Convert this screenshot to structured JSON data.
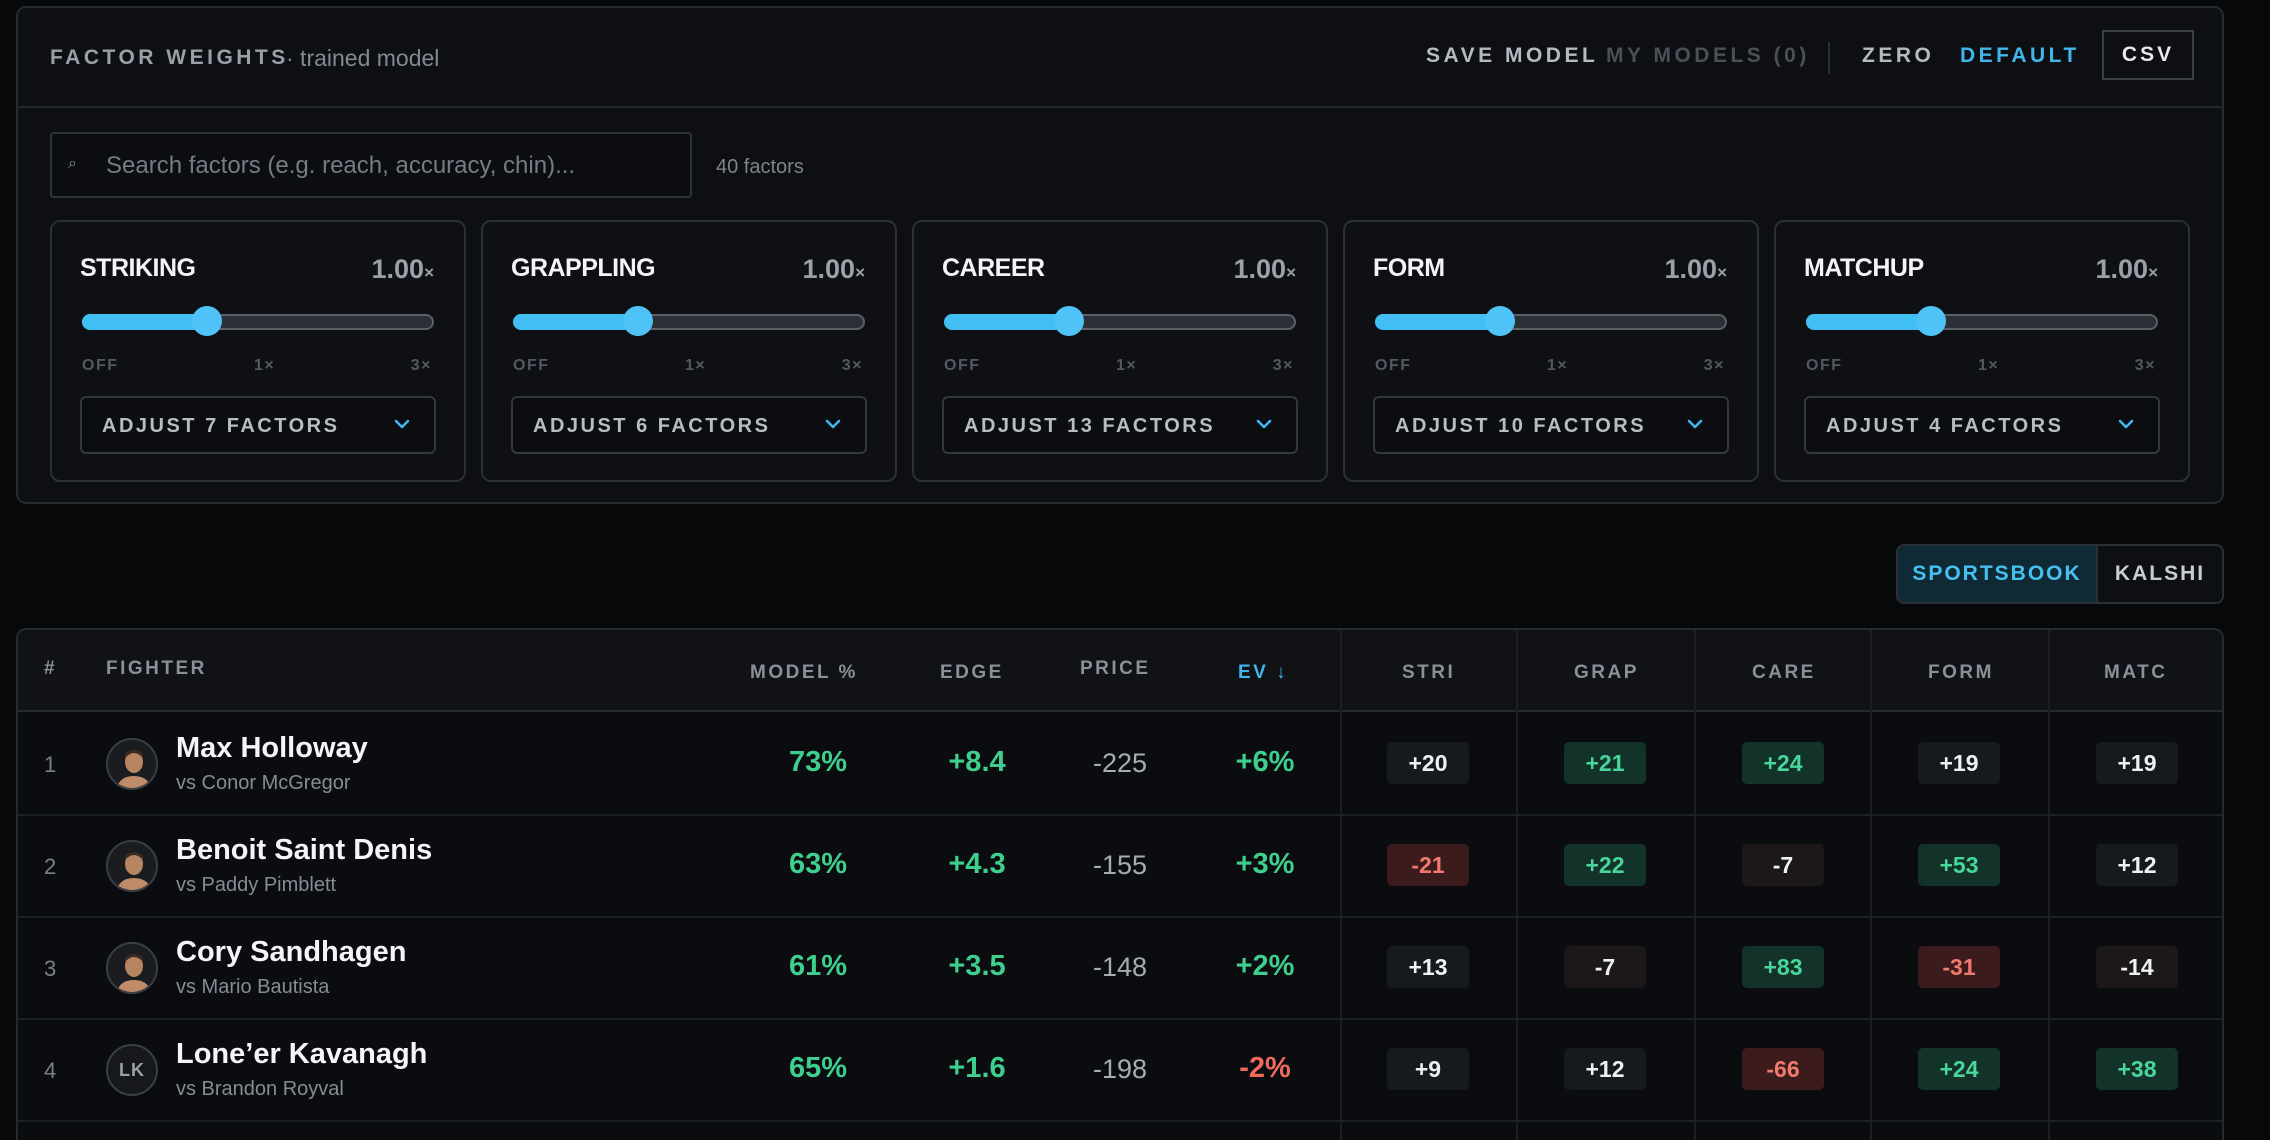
{
  "header": {
    "title": "FACTOR WEIGHTS",
    "subtitle": "· trained model",
    "save_label": "SAVE MODEL",
    "my_models_label": "MY MODELS (0)",
    "zero_label": "ZERO",
    "default_label": "DEFAULT",
    "csv_label": "CSV"
  },
  "search": {
    "placeholder": "Search factors (e.g. reach, accuracy, chin)...",
    "value": "",
    "count_label": "40 factors"
  },
  "slider_ticks": {
    "off": "OFF",
    "mid": "1×",
    "max": "3×"
  },
  "categories": [
    {
      "name": "STRIKING",
      "weight": "1.00",
      "unit": "×",
      "level": 0.35,
      "adjust_label": "ADJUST 7 FACTORS"
    },
    {
      "name": "GRAPPLING",
      "weight": "1.00",
      "unit": "×",
      "level": 0.35,
      "adjust_label": "ADJUST 6 FACTORS"
    },
    {
      "name": "CAREER",
      "weight": "1.00",
      "unit": "×",
      "level": 0.35,
      "adjust_label": "ADJUST 13 FACTORS"
    },
    {
      "name": "FORM",
      "weight": "1.00",
      "unit": "×",
      "level": 0.35,
      "adjust_label": "ADJUST 10 FACTORS"
    },
    {
      "name": "MATCHUP",
      "weight": "1.00",
      "unit": "×",
      "level": 0.35,
      "adjust_label": "ADJUST 4 FACTORS"
    }
  ],
  "market_toggle": {
    "sportsbook": "SPORTSBOOK",
    "kalshi": "KALSHI",
    "active": "sportsbook"
  },
  "colors": {
    "accent": "#41bef2",
    "positive": "#3ecf8e",
    "negative": "#ef6a5a"
  },
  "table": {
    "columns": {
      "rank": "#",
      "fighter": "FIGHTER",
      "model": "MODEL %",
      "edge": "EDGE",
      "price": "PRICE",
      "ev": "EV ↓",
      "stri": "STRI",
      "grap": "GRAP",
      "care": "CARE",
      "form": "FORM",
      "matc": "MATC"
    },
    "rows": [
      {
        "rank": "1",
        "name": "Max Holloway",
        "opponent": "vs Conor McGregor",
        "avatar": "photo",
        "initials": "",
        "model": "73%",
        "edge": "+8.4",
        "price": "-225",
        "ev": "+6%",
        "factors": [
          "+20",
          "+21",
          "+24",
          "+19",
          "+19"
        ]
      },
      {
        "rank": "2",
        "name": "Benoit Saint Denis",
        "opponent": "vs Paddy Pimblett",
        "avatar": "photo",
        "initials": "",
        "model": "63%",
        "edge": "+4.3",
        "price": "-155",
        "ev": "+3%",
        "factors": [
          "-21",
          "+22",
          "-7",
          "+53",
          "+12"
        ]
      },
      {
        "rank": "3",
        "name": "Cory Sandhagen",
        "opponent": "vs Mario Bautista",
        "avatar": "photo",
        "initials": "",
        "model": "61%",
        "edge": "+3.5",
        "price": "-148",
        "ev": "+2%",
        "factors": [
          "+13",
          "-7",
          "+83",
          "-31",
          "-14"
        ]
      },
      {
        "rank": "4",
        "name": "Lone’er Kavanagh",
        "opponent": "vs Brandon Royval",
        "avatar": "initials",
        "initials": "LK",
        "model": "65%",
        "edge": "+1.6",
        "price": "-198",
        "ev": "-2%",
        "factors": [
          "+9",
          "+12",
          "-66",
          "+24",
          "+38"
        ]
      }
    ]
  }
}
